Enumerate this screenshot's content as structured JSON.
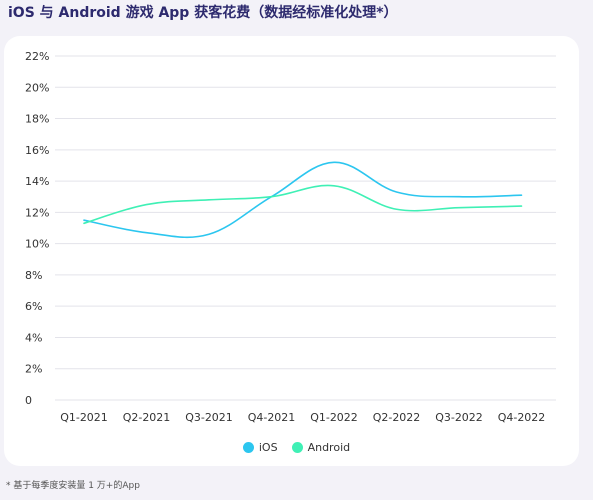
{
  "title": "iOS 与 Android 游戏 App 获客花费（数据经标准化处理*）",
  "footnote": "* 基于每季度安装量 1 万+的App",
  "colors": {
    "ios": "#2cc6ef",
    "android": "#3ff0b5",
    "grid": "#e3e3ea"
  },
  "chart_data": {
    "type": "line",
    "categories": [
      "Q1-2021",
      "Q2-2021",
      "Q3-2021",
      "Q4-2021",
      "Q1-2022",
      "Q2-2022",
      "Q3-2022",
      "Q4-2022"
    ],
    "yticks": [
      "0",
      "2%",
      "4%",
      "6%",
      "8%",
      "10%",
      "12%",
      "14%",
      "16%",
      "18%",
      "20%",
      "22%"
    ],
    "ylim": [
      0,
      22
    ],
    "grid": true,
    "legend_position": "bottom-center",
    "series": [
      {
        "name": "iOS",
        "color": "#2cc6ef",
        "values": [
          11.5,
          10.7,
          10.6,
          13.0,
          15.2,
          13.3,
          13.0,
          13.1
        ]
      },
      {
        "name": "Android",
        "color": "#3ff0b5",
        "values": [
          11.3,
          12.5,
          12.8,
          13.0,
          13.7,
          12.2,
          12.3,
          12.4
        ]
      }
    ]
  }
}
